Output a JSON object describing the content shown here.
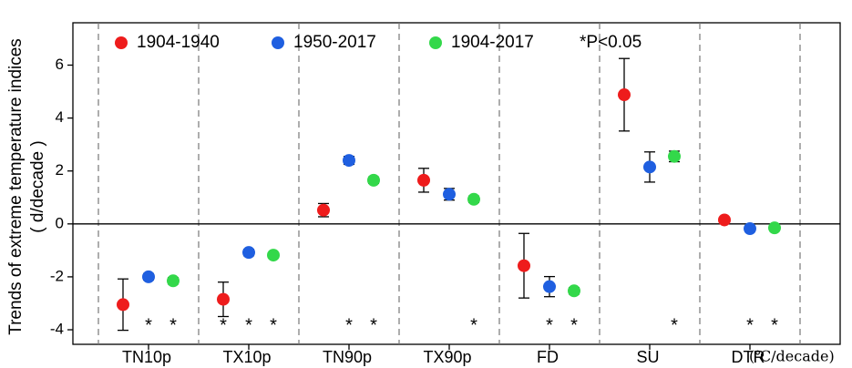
{
  "chart_data": {
    "type": "errorbar",
    "y_label_lines": [
      "Trends of extreme temperature indices",
      "( d/decade )"
    ],
    "categories": [
      "TN10p",
      "TX10p",
      "TN90p",
      "TX90p",
      "FD",
      "SU",
      "DTR"
    ],
    "annotation": "(℃/decade)",
    "legend_note": "*P<0.05",
    "series": [
      {
        "name": "1904-1940",
        "color": "#ee1c1c",
        "values": [
          -3.05,
          -2.85,
          0.52,
          1.65,
          -1.58,
          4.88,
          0.15
        ],
        "errors": [
          0.97,
          0.65,
          0.25,
          0.45,
          1.22,
          1.37,
          0.1
        ],
        "significance": [
          null,
          "*",
          null,
          null,
          null,
          null,
          null
        ]
      },
      {
        "name": "1950-2017",
        "color": "#1f5fe0",
        "values": [
          -2.0,
          -1.08,
          2.4,
          1.12,
          -2.37,
          2.15,
          -0.18
        ],
        "errors": [
          0.12,
          0.12,
          0.15,
          0.22,
          0.38,
          0.57,
          0.06
        ],
        "significance": [
          "*",
          "*",
          "*",
          null,
          "*",
          null,
          "*"
        ]
      },
      {
        "name": "1904-2017",
        "color": "#33d84a",
        "values": [
          -2.15,
          -1.18,
          1.65,
          0.93,
          -2.53,
          2.55,
          -0.15
        ],
        "errors": [
          0.12,
          0.1,
          0.12,
          0.12,
          0.12,
          0.2,
          0.07
        ],
        "significance": [
          "*",
          "*",
          "*",
          "*",
          "*",
          "*",
          "*"
        ]
      }
    ],
    "ylim": [
      -4.55,
      7.6
    ],
    "yticks": [
      -4,
      -2,
      0,
      2,
      4,
      6
    ]
  }
}
